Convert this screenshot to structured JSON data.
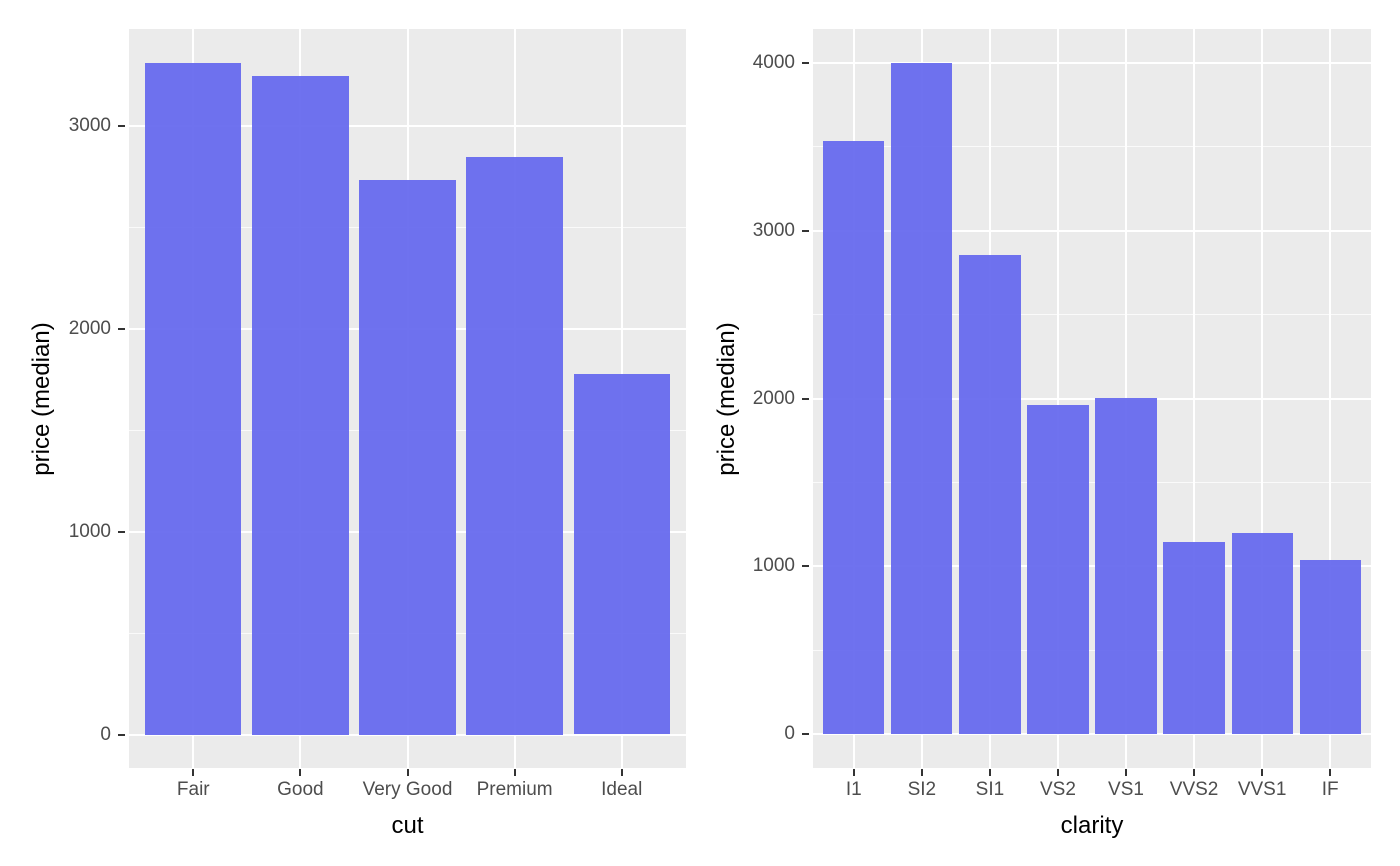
{
  "figure": {
    "background": "#FFFFFF",
    "description": "Two ggplot-style bar charts of diamond median price, by cut and by clarity"
  },
  "colors": {
    "bar_fill": "rgba(99,102,238,0.92)",
    "bar_fill_hex": "#7173EE",
    "panel_background": "#EBEBEB",
    "grid_major": "#FFFFFF",
    "grid_minor": "rgba(255,255,255,0.75)",
    "tick_label_text": "#4D4D4D",
    "axis_title_text": "#000000",
    "tick_mark": "#333333"
  },
  "chart_data": [
    {
      "type": "bar",
      "title": "",
      "xlabel": "cut",
      "ylabel": "price (median)",
      "categories": [
        "Fair",
        "Good",
        "Very Good",
        "Premium",
        "Ideal"
      ],
      "values": [
        3310,
        3245,
        2730,
        2845,
        1775
      ],
      "yticks": [
        0,
        1000,
        2000,
        3000
      ],
      "yticks_minor": [
        500,
        1500,
        2500
      ],
      "ylim": [
        -165,
        3476
      ],
      "grid": true,
      "legend": "none",
      "bar_relative_width": 0.9
    },
    {
      "type": "bar",
      "title": "",
      "xlabel": "clarity",
      "ylabel": "price (median)",
      "categories": [
        "I1",
        "SI2",
        "SI1",
        "VS2",
        "VS1",
        "VVS2",
        "VVS1",
        "IF"
      ],
      "values": [
        3535,
        4000,
        2855,
        1960,
        2005,
        1145,
        1200,
        1040
      ],
      "yticks": [
        0,
        1000,
        2000,
        3000,
        4000
      ],
      "yticks_minor": [
        500,
        1500,
        2500,
        3500
      ],
      "ylim": [
        -200,
        4200
      ],
      "grid": true,
      "legend": "none",
      "bar_relative_width": 0.9
    }
  ]
}
